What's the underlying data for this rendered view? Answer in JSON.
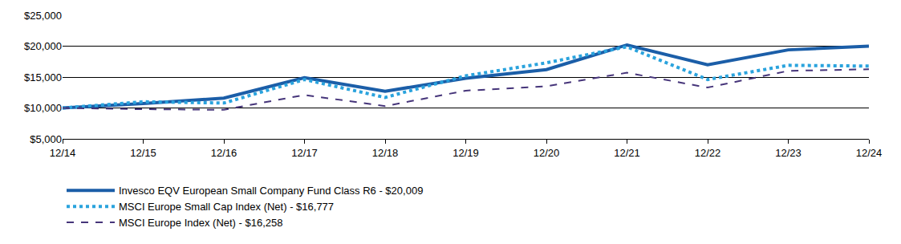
{
  "chart_data": {
    "type": "line",
    "categories": [
      "12/14",
      "12/15",
      "12/16",
      "12/17",
      "12/18",
      "12/19",
      "12/20",
      "12/21",
      "12/22",
      "12/23",
      "12/24"
    ],
    "series": [
      {
        "name": "Invesco EQV European Small Company Fund Class R6 - $20,009",
        "color": "#1b5ea8",
        "line_style": "solid",
        "values": [
          10000,
          10700,
          11600,
          14900,
          12700,
          14800,
          16200,
          20200,
          17000,
          19400,
          20009
        ]
      },
      {
        "name": "MSCI Europe Small Cap Index (Net) - $16,777",
        "color": "#2aa3dd",
        "line_style": "dot",
        "values": [
          10000,
          11000,
          10800,
          14600,
          11700,
          15200,
          17300,
          19900,
          14600,
          16900,
          16777
        ]
      },
      {
        "name": "MSCI Europe Index (Net) - $16,258",
        "color": "#46357a",
        "line_style": "dash",
        "values": [
          10000,
          9800,
          9700,
          12100,
          10300,
          12800,
          13500,
          15700,
          13300,
          16000,
          16258
        ]
      }
    ],
    "ylim": [
      5000,
      25000
    ],
    "yticks": [
      {
        "value": 5000,
        "label": "$5,000"
      },
      {
        "value": 10000,
        "label": "$10,000"
      },
      {
        "value": 15000,
        "label": "$15,000"
      },
      {
        "value": 20000,
        "label": "$20,000"
      },
      {
        "value": 25000,
        "label": "$25,000"
      }
    ],
    "grid": true,
    "legend": "bottom"
  }
}
